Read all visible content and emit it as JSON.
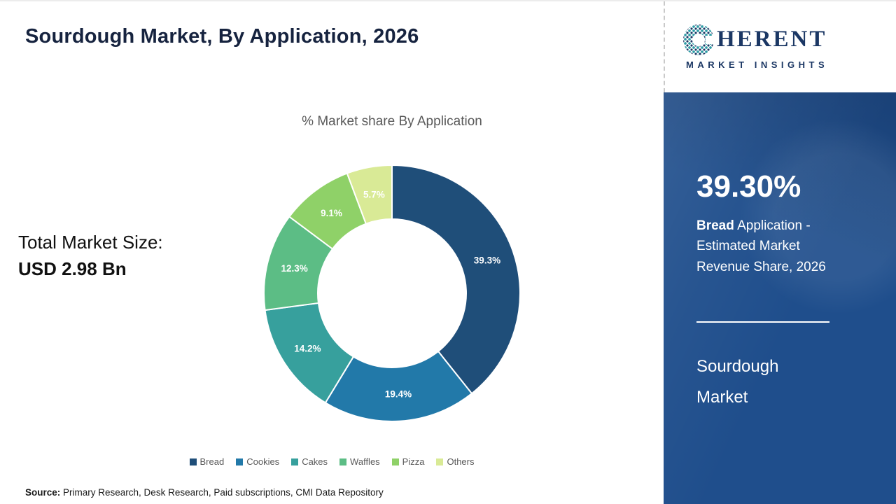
{
  "page": {
    "title": "Sourdough Market, By Application, 2026",
    "source": {
      "label": "Source:",
      "text": "Primary Research, Desk Research, Paid subscriptions, CMI Data Repository"
    },
    "total_market": {
      "label": "Total Market Size:",
      "value": "USD 2.98 Bn"
    }
  },
  "chart_data": {
    "type": "pie",
    "subtype": "donut",
    "title": "% Market share By Application",
    "categories": [
      "Bread",
      "Cookies",
      "Cakes",
      "Waffles",
      "Pizza",
      "Others"
    ],
    "values": [
      39.3,
      19.4,
      14.2,
      12.3,
      9.1,
      5.7
    ],
    "value_labels": [
      "39.3%",
      "19.4%",
      "14.2%",
      "12.3%",
      "9.1%",
      "5.7%"
    ],
    "colors": [
      "#1f4e79",
      "#2279a9",
      "#37a09d",
      "#5cbd85",
      "#8fd168",
      "#d9ea96"
    ],
    "start_angle_deg": 0,
    "direction": "clockwise",
    "legend_position": "bottom"
  },
  "sidebar": {
    "logo": {
      "brand_rest": "HERENT",
      "tagline": "MARKET INSIGHTS"
    },
    "stat": {
      "value": "39.30%",
      "desc_bold": "Bread",
      "desc_rest": " Application - Estimated Market Revenue Share, 2026"
    },
    "market_line1": "Sourdough",
    "market_line2": "Market"
  }
}
